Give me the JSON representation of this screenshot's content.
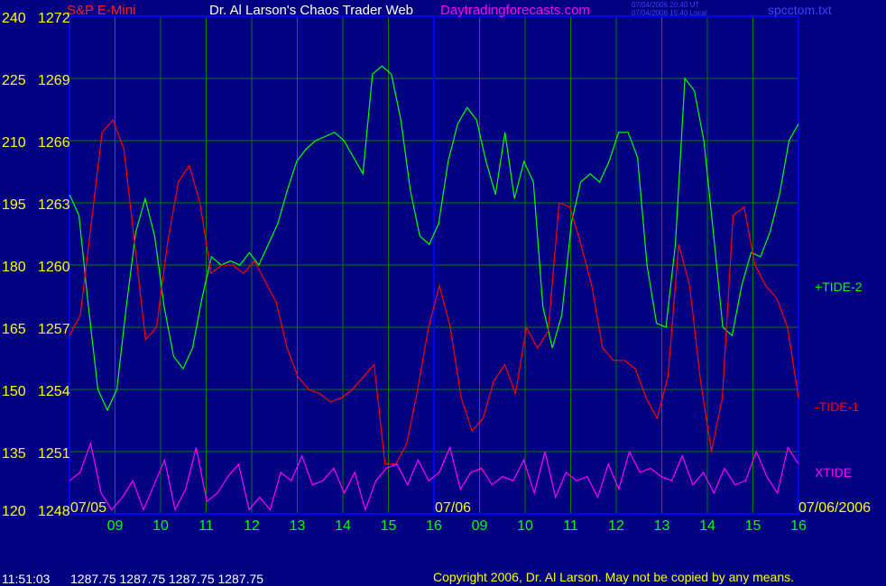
{
  "header": {
    "symbol": "S&P E-Mini",
    "title": "Dr. Al Larson's Chaos Trader Web",
    "site": "Daytradingforecasts.com",
    "ut_time": "07/04/2006 20:40 UT",
    "local_time": "07/04/2006 15:40 Local",
    "file": "spcctom.txt"
  },
  "footer": {
    "time": "11:51:03",
    "quotes": "1287.75 1287.75 1287.75 1287.75",
    "copyright": "Copyright 2006, Dr. Al Larson. May not be copied by any means."
  },
  "colors": {
    "background": "#000080",
    "grid": "#008000",
    "tide_plus2": "#00FF00",
    "tide_minus1": "#FF0000",
    "xtide": "#FF00FF",
    "price_label": "#FFFF00",
    "time_label": "#00FF00"
  },
  "chart_data": {
    "type": "line",
    "left_axis": [
      "240",
      "225",
      "210",
      "195",
      "180",
      "165",
      "150",
      "135",
      "120"
    ],
    "price_axis": [
      "1272",
      "1269",
      "1266",
      "1263",
      "1260",
      "1257",
      "1254",
      "1251",
      "1248"
    ],
    "ylim": [
      120,
      240
    ],
    "price_ylim": [
      1248,
      1272
    ],
    "x_ticks": [
      "09",
      "10",
      "11",
      "12",
      "13",
      "14",
      "15",
      "16",
      "09",
      "10",
      "11",
      "12",
      "13",
      "14",
      "15",
      "16"
    ],
    "date_labels": [
      "07/05",
      "07/06",
      "07/06/2006"
    ],
    "grid": true,
    "series": [
      {
        "name": "+TIDE-2",
        "color": "#00FF00",
        "values": [
          197,
          192,
          170,
          150,
          145,
          150,
          170,
          188,
          196,
          187,
          170,
          158,
          155,
          160,
          172,
          182,
          180,
          181,
          180,
          183,
          180,
          185,
          190,
          198,
          205,
          208,
          210,
          211,
          212,
          210,
          206,
          202,
          226,
          228,
          226,
          215,
          198,
          187,
          185,
          190,
          205,
          214,
          218,
          215,
          205,
          197,
          212,
          196,
          205,
          200,
          170,
          160,
          168,
          190,
          200,
          202,
          200,
          205,
          212,
          212,
          206,
          180,
          166,
          165,
          185,
          225,
          222,
          210,
          188,
          165,
          163,
          175,
          183,
          182,
          188,
          197,
          210,
          214
        ]
      },
      {
        "name": "-TIDE-1",
        "color": "#FF0000",
        "values": [
          163,
          168,
          190,
          212,
          215,
          208,
          185,
          162,
          165,
          185,
          200,
          204,
          195,
          178,
          180,
          180,
          178,
          181,
          176,
          171,
          160,
          153,
          150,
          149,
          147,
          148,
          150,
          153,
          156,
          132,
          132,
          137,
          150,
          165,
          175,
          165,
          148,
          140,
          143,
          152,
          156,
          149,
          165,
          160,
          164,
          195,
          194,
          185,
          175,
          160,
          157,
          157,
          155,
          148,
          143,
          153,
          185,
          175,
          152,
          135,
          148,
          192,
          194,
          180,
          175,
          172,
          165,
          148
        ]
      },
      {
        "name": "XTIDE",
        "color": "#FF00FF",
        "values": [
          128,
          130,
          137,
          125,
          121,
          124,
          128,
          121,
          127,
          133,
          121,
          126,
          136,
          123,
          125,
          129,
          132,
          121,
          124,
          121,
          130,
          128,
          134,
          127,
          128,
          131,
          125,
          130,
          121,
          128,
          131,
          132,
          127,
          133,
          128,
          130,
          136,
          126,
          130,
          131,
          127,
          129,
          128,
          133,
          125,
          135,
          124,
          130,
          128,
          129,
          124,
          132,
          126,
          135,
          130,
          131,
          129,
          128,
          134,
          127,
          130,
          125,
          131,
          127,
          128,
          135,
          129,
          125,
          136,
          132
        ]
      }
    ],
    "series_labels": [
      "+TIDE-2",
      "-TIDE-1",
      "XTIDE"
    ]
  }
}
